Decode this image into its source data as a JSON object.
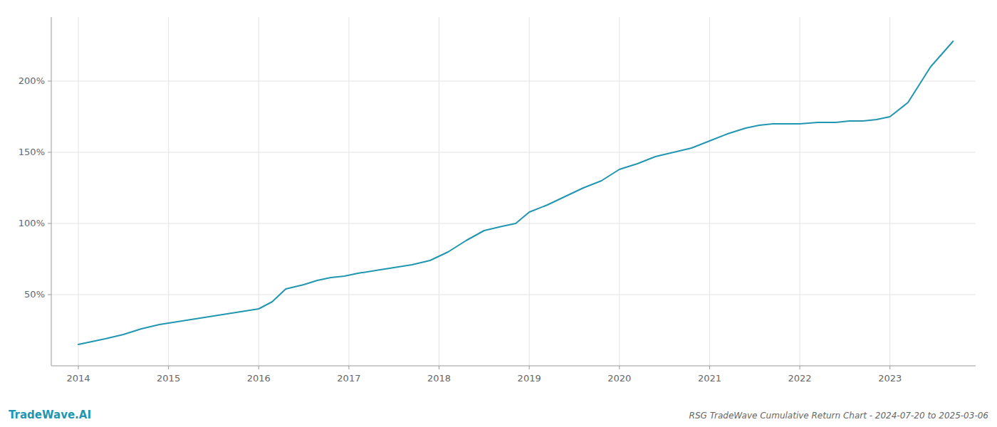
{
  "chart_data": {
    "type": "line",
    "title": "RSG TradeWave Cumulative Return Chart - 2024-07-20 to 2025-03-06",
    "annotations": [
      "TradeWave.AI"
    ],
    "x": [
      2014.0,
      2014.15,
      2014.3,
      2014.5,
      2014.7,
      2014.9,
      2015.1,
      2015.3,
      2015.5,
      2015.7,
      2015.9,
      2016.0,
      2016.15,
      2016.3,
      2016.5,
      2016.65,
      2016.8,
      2016.95,
      2017.1,
      2017.3,
      2017.5,
      2017.7,
      2017.9,
      2018.1,
      2018.3,
      2018.5,
      2018.7,
      2018.85,
      2019.0,
      2019.2,
      2019.4,
      2019.6,
      2019.8,
      2020.0,
      2020.2,
      2020.4,
      2020.6,
      2020.8,
      2021.0,
      2021.2,
      2021.4,
      2021.55,
      2021.7,
      2021.85,
      2022.0,
      2022.2,
      2022.4,
      2022.55,
      2022.7,
      2022.85,
      2023.0,
      2023.2,
      2023.45,
      2023.7
    ],
    "values": [
      15,
      17,
      19,
      22,
      26,
      29,
      31,
      33,
      35,
      37,
      39,
      40,
      45,
      54,
      57,
      60,
      62,
      63,
      65,
      67,
      69,
      71,
      74,
      80,
      88,
      95,
      98,
      100,
      108,
      113,
      119,
      125,
      130,
      138,
      142,
      147,
      150,
      153,
      158,
      163,
      167,
      169,
      170,
      170,
      170,
      171,
      171,
      172,
      172,
      173,
      175,
      185,
      210,
      228
    ],
    "color": "#2196b0",
    "xlim": [
      2013.7,
      2023.95
    ],
    "ylim": [
      0,
      245
    ],
    "xticks": [
      2014,
      2015,
      2016,
      2017,
      2018,
      2019,
      2020,
      2021,
      2022,
      2023
    ],
    "yticks": [
      {
        "value": 50,
        "label": "50%"
      },
      {
        "value": 100,
        "label": "100%"
      },
      {
        "value": 150,
        "label": "150%"
      },
      {
        "value": 200,
        "label": "200%"
      }
    ],
    "grid": true
  }
}
